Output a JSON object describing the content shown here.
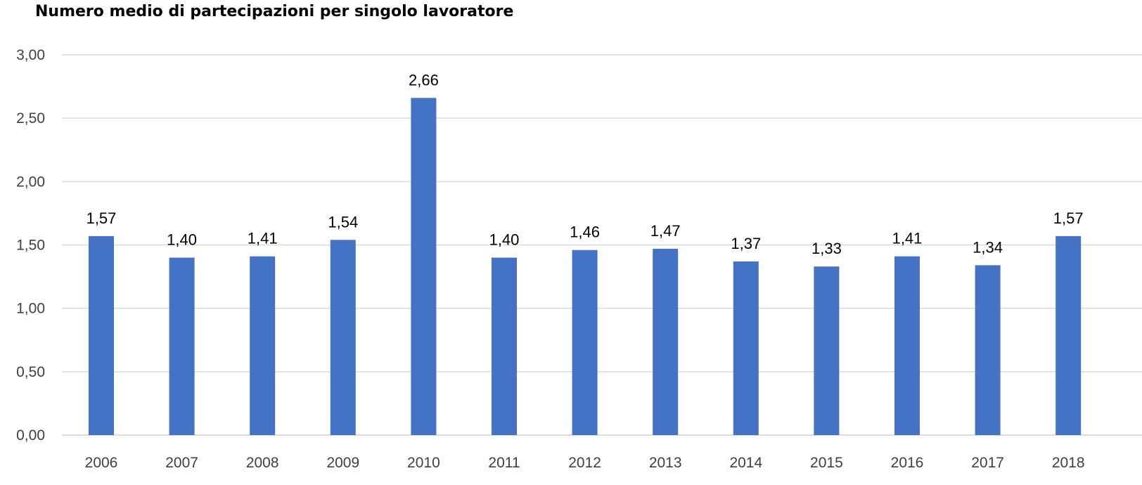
{
  "chart_data": {
    "type": "bar",
    "title": "Numero medio di partecipazioni per singolo lavoratore",
    "xlabel": "",
    "ylabel": "",
    "categories": [
      "2006",
      "2007",
      "2008",
      "2009",
      "2010",
      "2011",
      "2012",
      "2013",
      "2014",
      "2015",
      "2016",
      "2017",
      "2018"
    ],
    "values": [
      1.57,
      1.4,
      1.41,
      1.54,
      2.66,
      1.4,
      1.46,
      1.47,
      1.37,
      1.33,
      1.41,
      1.34,
      1.57
    ],
    "value_labels": [
      "1,57",
      "1,40",
      "1,41",
      "1,54",
      "2,66",
      "1,40",
      "1,46",
      "1,47",
      "1,37",
      "1,33",
      "1,41",
      "1,34",
      "1,57"
    ],
    "ylim": [
      0,
      3
    ],
    "yticks": [
      0,
      0.5,
      1,
      1.5,
      2,
      2.5,
      3
    ],
    "ytick_labels": [
      "0,00",
      "0,50",
      "1,00",
      "1,50",
      "2,00",
      "2,50",
      "3,00"
    ],
    "grid": true,
    "legend": "none",
    "bar_color": "#4472c4"
  }
}
